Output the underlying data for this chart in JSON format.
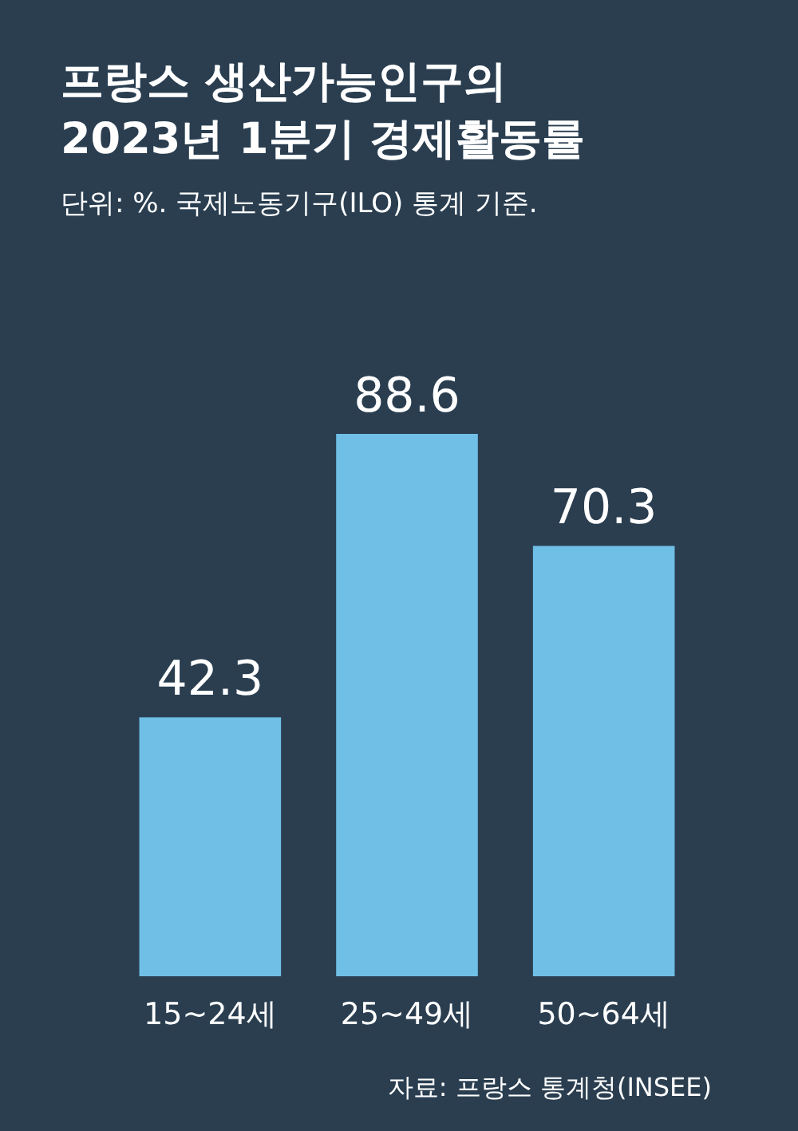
{
  "chart_data": {
    "type": "bar",
    "title": "프랑스 생산가능인구의\n2023년 1분기 경제활동률",
    "subtitle": "단위: %. 국제노동기구(ILO) 통계 기준.",
    "categories": [
      "15~24세",
      "25~49세",
      "50~64세"
    ],
    "values": [
      42.3,
      88.6,
      70.3
    ],
    "color": "#6fbfe6",
    "data_labels": true,
    "annotations": [
      "자료: 프랑스 통계청(INSEE)"
    ]
  }
}
